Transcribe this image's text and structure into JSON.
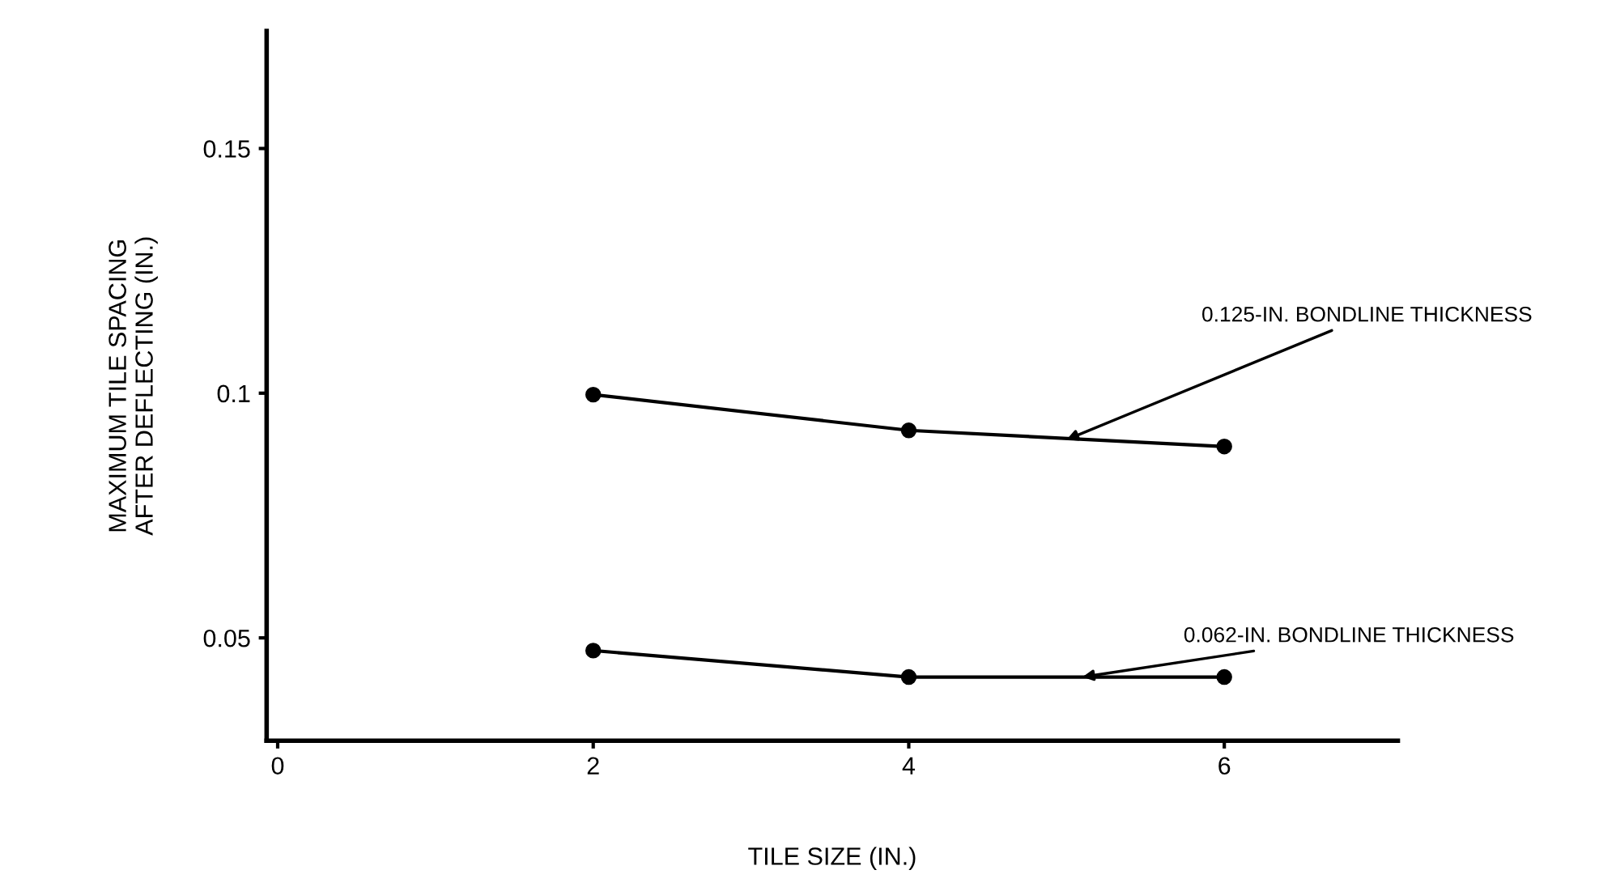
{
  "chart_data": {
    "type": "line",
    "xlabel": "TILE SIZE (IN.)",
    "ylabel": "MAXIMUM TILE SPACING\nAFTER DEFLECTING (IN.)",
    "x": [
      2,
      4,
      6
    ],
    "series": [
      {
        "color": "#000000",
        "values": [
          0.0997,
          0.0924,
          0.0891
        ]
      },
      {
        "color": "#000000",
        "values": [
          0.0474,
          0.042,
          0.042
        ]
      }
    ],
    "xlim": [
      -0.07,
      7.1
    ],
    "ylim": [
      0.029,
      0.174
    ],
    "xticks": [
      0,
      2,
      4,
      6
    ],
    "yticks": [
      0.05,
      0.1,
      0.15
    ],
    "marker": "circle",
    "line_style": "solid",
    "grid": false,
    "legend": false,
    "annotations": [
      {
        "text": "0.125-IN. BONDLINE THICKNESS",
        "x": 5.0,
        "y": 0.0905
      },
      {
        "text": "0.062-IN. BONDLINE THICKNESS",
        "x": 5.1,
        "y": 0.042
      }
    ]
  }
}
